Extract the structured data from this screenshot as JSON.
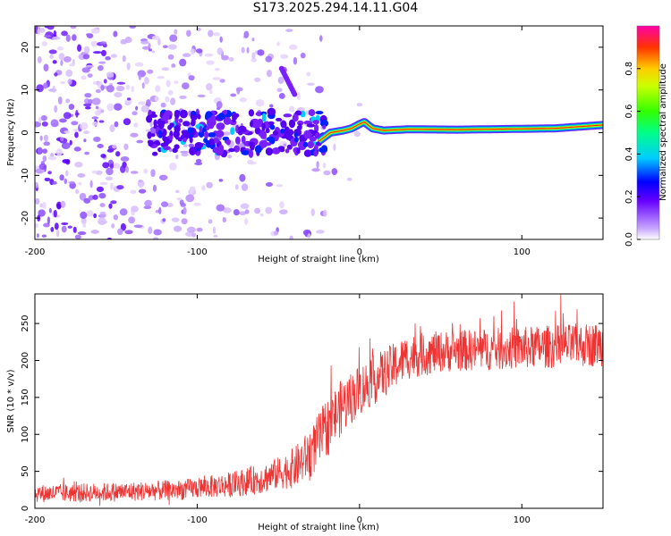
{
  "title": "S173.2025.294.14.11.G04",
  "chart_data": [
    {
      "type": "heatmap",
      "title": "S173.2025.294.14.11.G04",
      "xlabel": "Height of straight line (km)",
      "ylabel": "Frequency (Hz)",
      "xlim": [
        -200,
        150
      ],
      "ylim": [
        -25,
        25
      ],
      "xticks": [
        -200,
        -100,
        0,
        100
      ],
      "yticks": [
        -20,
        -10,
        0,
        10,
        20
      ],
      "colorbar": {
        "label": "Normalized spectral amplitude",
        "range": [
          0,
          1
        ],
        "ticks": [
          0.0,
          0.2,
          0.4,
          0.6,
          0.8
        ],
        "tick_labels": [
          "0.0",
          "0.2",
          "0.4",
          "0.6",
          "0.8"
        ]
      },
      "signal_line": {
        "description_free": true,
        "points": [
          [
            -25,
            -2
          ],
          [
            -18,
            0
          ],
          [
            -10,
            0.5
          ],
          [
            -5,
            1
          ],
          [
            0,
            2
          ],
          [
            3,
            2.5
          ],
          [
            8,
            1
          ],
          [
            15,
            0.5
          ],
          [
            30,
            0.8
          ],
          [
            60,
            0.7
          ],
          [
            100,
            0.9
          ],
          [
            120,
            1.0
          ],
          [
            150,
            1.8
          ]
        ]
      }
    },
    {
      "type": "line",
      "xlabel": "Height of straight line (km)",
      "ylabel": "SNR (10 * v/v)",
      "xlim": [
        -200,
        150
      ],
      "ylim": [
        0,
        290
      ],
      "xticks": [
        -200,
        -100,
        0,
        100
      ],
      "yticks": [
        0,
        50,
        100,
        150,
        200,
        250
      ],
      "color": "#ee3333",
      "trend": [
        [
          -200,
          20
        ],
        [
          -150,
          22
        ],
        [
          -110,
          25
        ],
        [
          -80,
          32
        ],
        [
          -60,
          40
        ],
        [
          -40,
          55
        ],
        [
          -30,
          75
        ],
        [
          -20,
          110
        ],
        [
          -10,
          140
        ],
        [
          0,
          160
        ],
        [
          10,
          175
        ],
        [
          20,
          190
        ],
        [
          30,
          205
        ],
        [
          50,
          212
        ],
        [
          80,
          215
        ],
        [
          110,
          218
        ],
        [
          150,
          222
        ]
      ],
      "noise_amplitude": [
        [
          -200,
          12
        ],
        [
          -100,
          14
        ],
        [
          -50,
          22
        ],
        [
          -20,
          40
        ],
        [
          0,
          35
        ],
        [
          50,
          28
        ],
        [
          150,
          30
        ]
      ]
    }
  ]
}
